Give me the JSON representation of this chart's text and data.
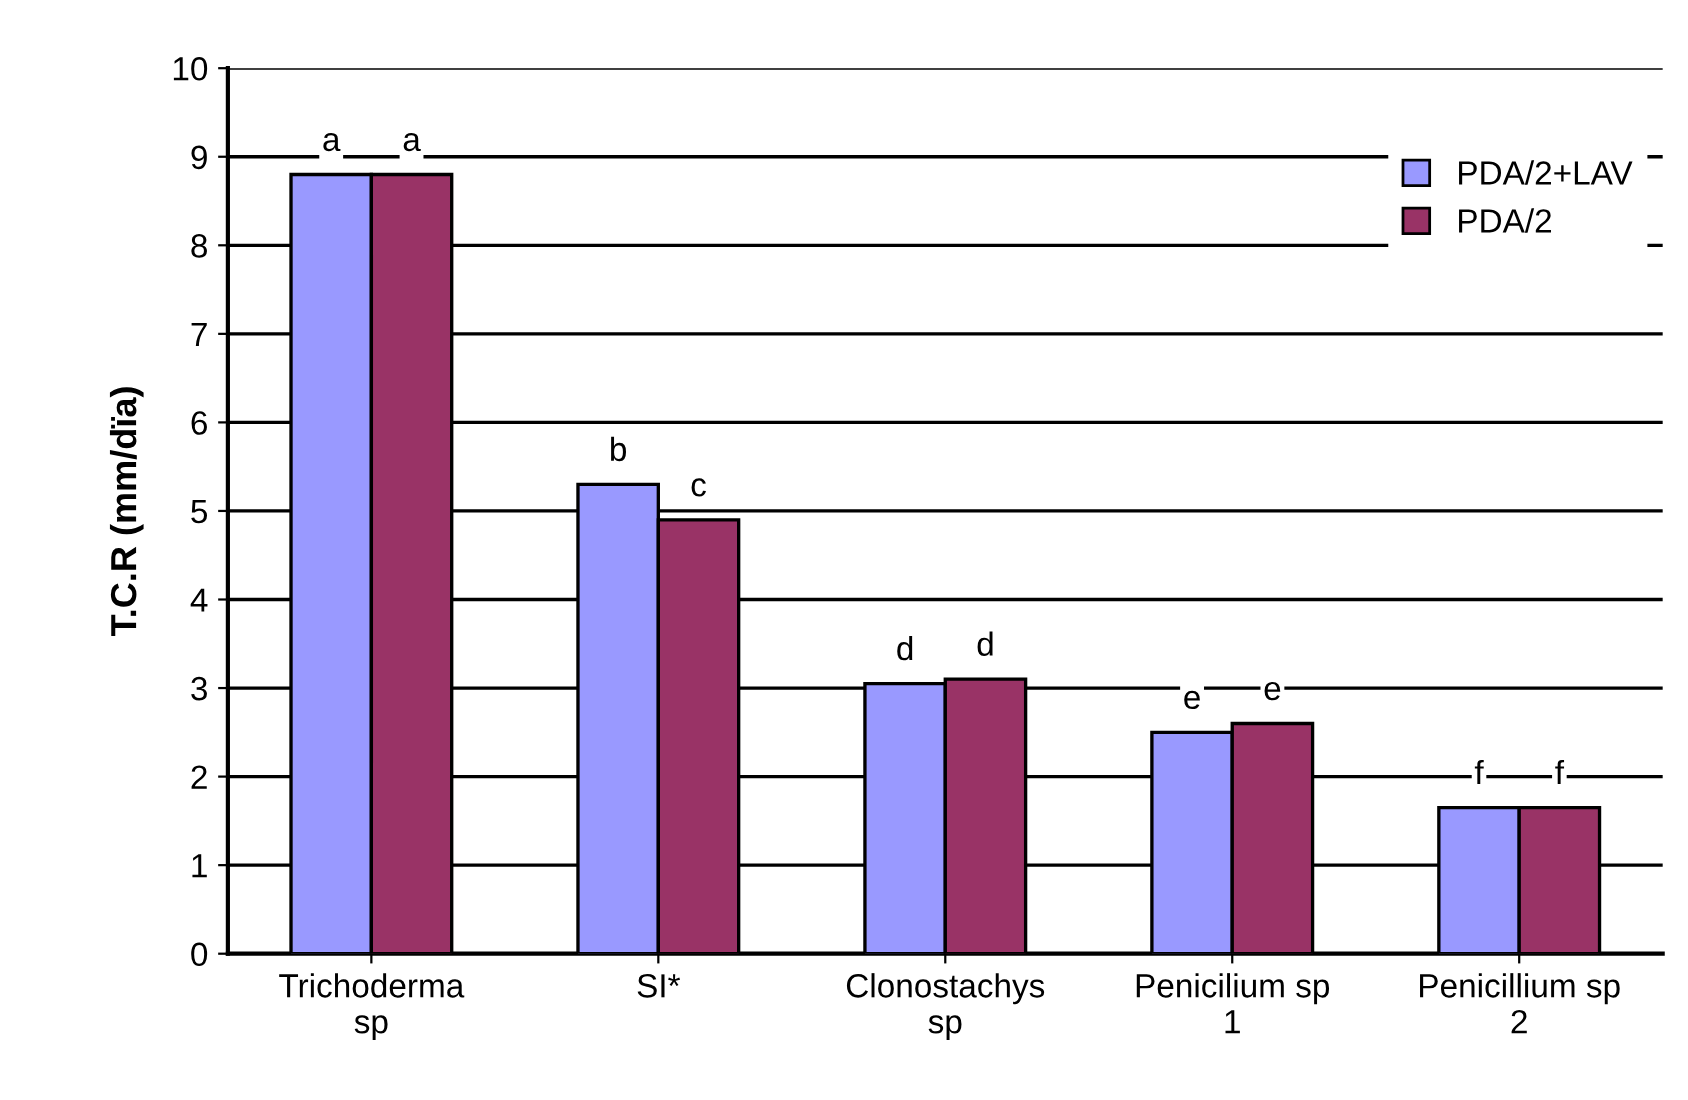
{
  "chart_data": {
    "type": "bar",
    "ylabel": "T.C.R (mm/dïa)",
    "categories": [
      "Trichoderma\nsp",
      "SI*",
      "Clonostachys\nsp",
      "Penicilium sp\n1",
      "Penicillium sp\n2"
    ],
    "series": [
      {
        "name": "PDA/2+LAV",
        "color": "#9999ff",
        "values": [
          8.8,
          5.3,
          3.05,
          2.5,
          1.65
        ],
        "value_labels": [
          "a",
          "b",
          "d",
          "e",
          "f"
        ]
      },
      {
        "name": "PDA/2",
        "color": "#993366",
        "values": [
          8.8,
          4.9,
          3.1,
          2.6,
          1.65
        ],
        "value_labels": [
          "a",
          "c",
          "d",
          "e",
          "f"
        ]
      }
    ],
    "ylim": [
      0,
      10
    ],
    "yticks": [
      0,
      1,
      2,
      3,
      4,
      5,
      6,
      7,
      8,
      9,
      10
    ],
    "grid": "y",
    "legend": "top right"
  }
}
